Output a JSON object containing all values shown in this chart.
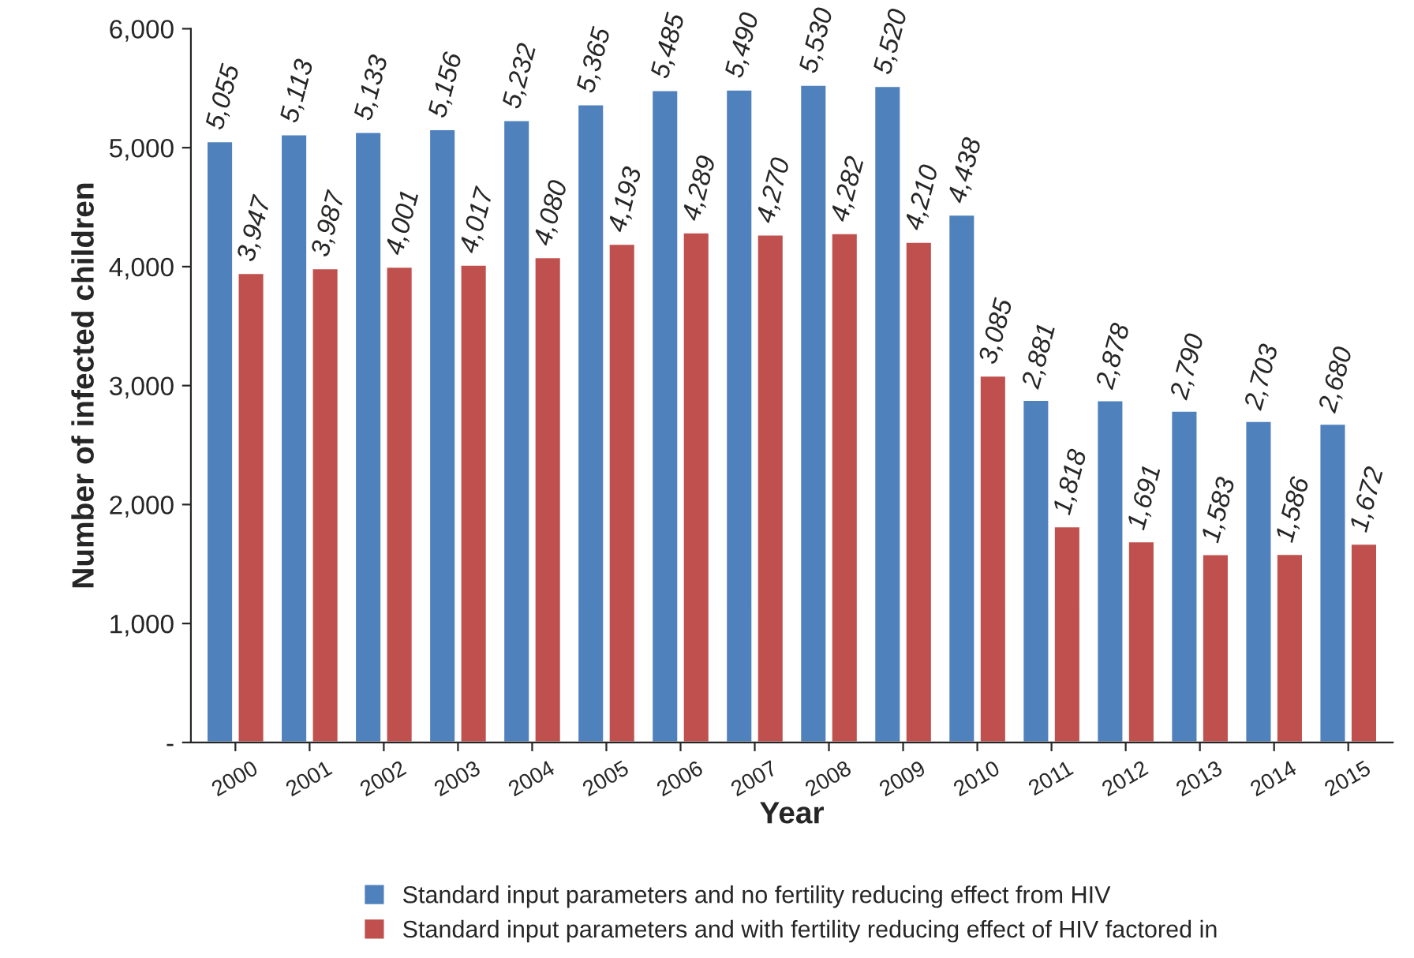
{
  "chart_data": {
    "type": "bar",
    "xlabel": "Year",
    "ylabel": "Number of infected children",
    "categories": [
      "2000",
      "2001",
      "2002",
      "2003",
      "2004",
      "2005",
      "2006",
      "2007",
      "2008",
      "2009",
      "2010",
      "2011",
      "2012",
      "2013",
      "2014",
      "2015"
    ],
    "series": [
      {
        "name": "Standard input parameters and no fertility reducing effect from HIV",
        "color": "#4f81bd",
        "values": [
          5055,
          5113,
          5133,
          5156,
          5232,
          5365,
          5485,
          5490,
          5530,
          5520,
          4438,
          2881,
          2878,
          2790,
          2703,
          2680
        ],
        "value_labels": [
          "5,055",
          "5,113",
          "5,133",
          "5,156",
          "5,232",
          "5,365",
          "5,485",
          "5,490",
          "5,530",
          "5,520",
          "4,438",
          "2,881",
          "2,878",
          "2,790",
          "2,703",
          "2,680"
        ]
      },
      {
        "name": "Standard input parameters and with fertility reducing effect of HIV factored in",
        "color": "#c0504d",
        "values": [
          3947,
          3987,
          4001,
          4017,
          4080,
          4193,
          4289,
          4270,
          4282,
          4210,
          3085,
          1818,
          1691,
          1583,
          1586,
          1672
        ],
        "value_labels": [
          "3,947",
          "3,987",
          "4,001",
          "4,017",
          "4,080",
          "4,193",
          "4,289",
          "4,270",
          "4,282",
          "4,210",
          "3,085",
          "1,818",
          "1,691",
          "1,583",
          "1,586",
          "1,672"
        ]
      }
    ],
    "ylim": [
      0,
      6000
    ],
    "yticks": [
      {
        "value": 0,
        "label": "-"
      },
      {
        "value": 1000,
        "label": "1,000"
      },
      {
        "value": 2000,
        "label": "2,000"
      },
      {
        "value": 3000,
        "label": "3,000"
      },
      {
        "value": 4000,
        "label": "4,000"
      },
      {
        "value": 5000,
        "label": "5,000"
      },
      {
        "value": 6000,
        "label": "6,000"
      }
    ],
    "grid": false,
    "legend": "bottom"
  }
}
